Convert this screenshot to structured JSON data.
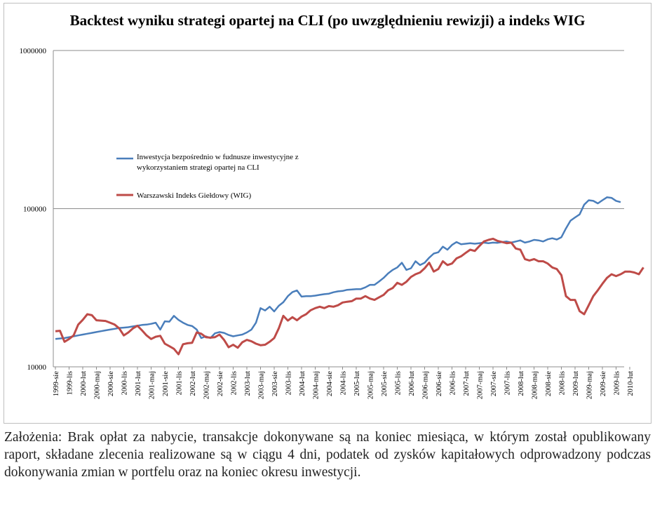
{
  "chart_data": {
    "type": "line",
    "title": "Backtest wyniku strategi opartej na CLI (po uwzględnieniu rewizji) a indeks WIG",
    "y_scale": "log",
    "ylim": [
      10000,
      1000000
    ],
    "y_ticks": [
      "1000000",
      "100000",
      "10000"
    ],
    "y_tick_values": [
      1000000,
      100000,
      10000
    ],
    "x_tick_labels": [
      "1999-sie",
      "1999-lis",
      "2000-lut",
      "2000-maj",
      "2000-sie",
      "2000-lis",
      "2001-lut",
      "2001-maj",
      "2001-sie",
      "2001-lis",
      "2002-lut",
      "2002-maj",
      "2002-sie",
      "2002-lis",
      "2003-lut",
      "2003-maj",
      "2003-sie",
      "2003-lis",
      "2004-lut",
      "2004-maj",
      "2004-sie",
      "2004-lis",
      "2005-lut",
      "2005-maj",
      "2005-sie",
      "2005-lis",
      "2006-lut",
      "2006-maj",
      "2006-sie",
      "2006-lis",
      "2007-lut",
      "2007-maj",
      "2007-sie",
      "2007-lis",
      "2008-lut",
      "2008-maj",
      "2008-sie",
      "2008-lis",
      "2009-lut",
      "2009-maj",
      "2009-sie",
      "2009-lis",
      "2010-lut"
    ],
    "series": [
      {
        "name": "Inwestycja bezpośrednio w fudnusze inwestycyjne z wykorzystaniem strategi opartej na CLI",
        "name_line1": "Inwestycja bezpośrednio w fudnusze inwestycyjne z",
        "name_line2": "wykorzystaniem strategi opartej na CLI",
        "color": "#4a7ebb",
        "values": [
          15000,
          15100,
          15200,
          15400,
          15600,
          15800,
          16000,
          16200,
          16400,
          16600,
          16800,
          17000,
          17200,
          17400,
          17600,
          17700,
          17800,
          18000,
          18200,
          18400,
          18500,
          18700,
          19000,
          17200,
          19400,
          19300,
          21000,
          19800,
          19000,
          18400,
          18100,
          17200,
          15200,
          15600,
          15200,
          16300,
          16600,
          16400,
          15900,
          15600,
          15800,
          16000,
          16500,
          17200,
          19000,
          23500,
          22700,
          24000,
          22400,
          24300,
          25600,
          28000,
          29700,
          30400,
          27800,
          28000,
          28000,
          28200,
          28500,
          28800,
          29000,
          29600,
          30000,
          30200,
          30700,
          30800,
          31000,
          31000,
          31800,
          33000,
          33000,
          34600,
          36500,
          39000,
          41000,
          42500,
          45500,
          41000,
          42000,
          46500,
          44000,
          45500,
          49000,
          52000,
          53000,
          57500,
          55000,
          59000,
          61500,
          59500,
          60000,
          60500,
          60000,
          60500,
          61000,
          60500,
          61000,
          60800,
          61500,
          62000,
          61000,
          62000,
          63000,
          61000,
          62000,
          63500,
          63000,
          62000,
          64000,
          65000,
          63800,
          66000,
          75000,
          84000,
          88000,
          92000,
          106000,
          113000,
          112000,
          108000,
          113000,
          118000,
          117000,
          112000,
          110000
        ]
      },
      {
        "name": "Warszawski Indeks Giełdowy (WIG)",
        "color": "#be4b48",
        "values": [
          16800,
          16900,
          14400,
          15000,
          15800,
          18500,
          19800,
          21500,
          21200,
          19700,
          19600,
          19500,
          19000,
          18500,
          17500,
          15800,
          16500,
          17500,
          18200,
          17000,
          15800,
          15000,
          15500,
          15700,
          14000,
          13500,
          13000,
          12000,
          13900,
          14100,
          14200,
          16500,
          16200,
          15400,
          15300,
          15400,
          16000,
          14800,
          13300,
          13800,
          13200,
          14300,
          14800,
          14500,
          14000,
          13700,
          13800,
          14400,
          15200,
          17500,
          21000,
          19600,
          20600,
          19700,
          20800,
          21500,
          22800,
          23500,
          24000,
          23500,
          24200,
          24000,
          24500,
          25500,
          25800,
          26000,
          27000,
          27000,
          28000,
          27000,
          26500,
          27500,
          28500,
          30500,
          31500,
          34000,
          33000,
          34500,
          37000,
          38500,
          39500,
          42000,
          45500,
          40000,
          41500,
          46500,
          44000,
          45000,
          48500,
          50000,
          52500,
          55000,
          54000,
          58000,
          62000,
          63500,
          64500,
          62500,
          61500,
          60500,
          61000,
          56000,
          55000,
          48000,
          47000,
          48000,
          46500,
          46500,
          45000,
          42500,
          41500,
          38000,
          28000,
          26500,
          26500,
          22500,
          21500,
          24500,
          28000,
          30500,
          33500,
          36500,
          38500,
          37500,
          38500,
          40000,
          40000,
          39500,
          38500,
          42500
        ]
      }
    ]
  },
  "footnote": "Założenia: Brak opłat za nabycie, transakcje dokonywane są na koniec miesiąca, w którym został opublikowany raport, składane zlecenia realizowane są w ciągu 4 dni, podatek od zysków kapitałowych odprowadzony podczas dokonywania zmian w portfelu oraz na koniec okresu inwestycji."
}
